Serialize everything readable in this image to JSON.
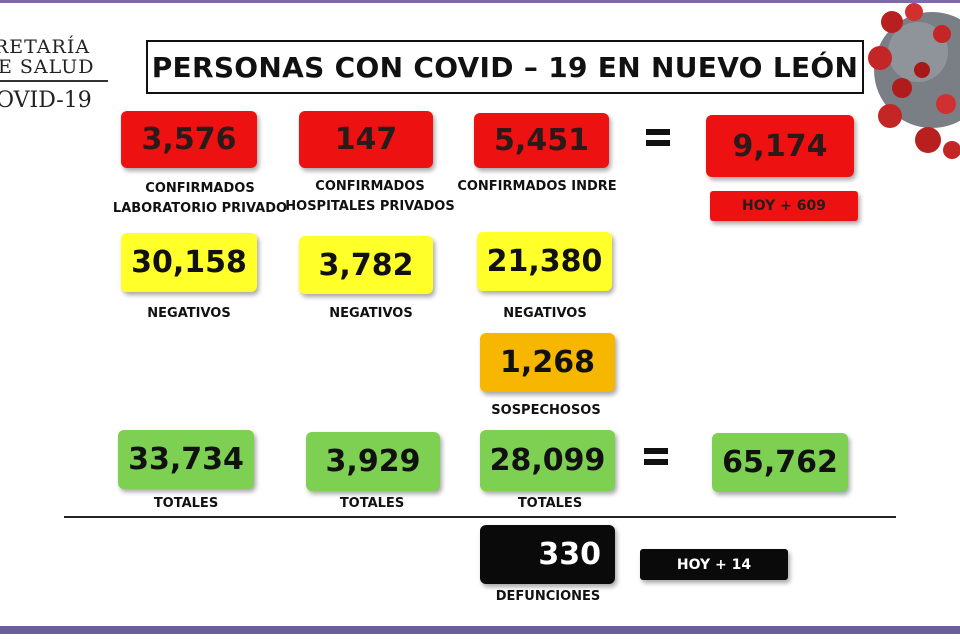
{
  "header": {
    "logo_line1": "RETARÍA",
    "logo_line2": "E SALUD",
    "logo_line3": "OVID-19",
    "title": "PERSONAS CON COVID – 19 EN NUEVO LEÓN"
  },
  "confirmed": {
    "lab_privado": "3,576",
    "hospitales_privados": "147",
    "indre": "5,451",
    "total": "9,174",
    "today": "HOY + 609",
    "label_lab": "CONFIRMADOS\nLABORATORIO PRIVADO",
    "label_hosp": "CONFIRMADOS\nHOSPITALES PRIVADOS",
    "label_indre": "CONFIRMADOS INDRE"
  },
  "negatives": {
    "lab_privado": "30,158",
    "hospitales_privados": "3,782",
    "indre": "21,380",
    "label": "NEGATIVOS"
  },
  "suspected": {
    "indre": "1,268",
    "label": "SOSPECHOSOS"
  },
  "totals": {
    "lab_privado": "33,734",
    "hospitales_privados": "3,929",
    "indre": "28,099",
    "grand_total": "65,762",
    "label": "TOTALES"
  },
  "deaths": {
    "value": "330",
    "today": "HOY + 14",
    "label": "DEFUNCIONES"
  },
  "colors": {
    "confirmed": "#ee1111",
    "negative": "#ffff2a",
    "suspected": "#f7b700",
    "total": "#7ed053",
    "deaths": "#0a0a0a",
    "accent_bar": "#6b5ea0"
  }
}
